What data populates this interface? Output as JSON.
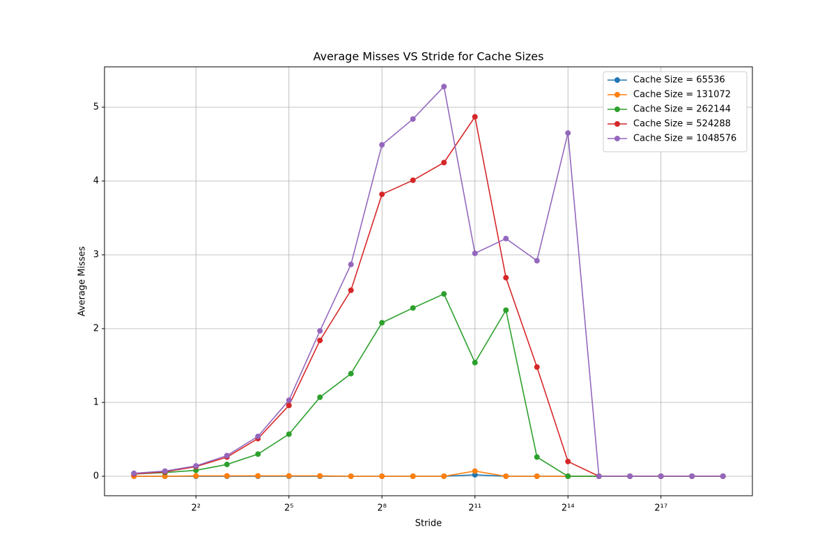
{
  "chart_data": {
    "type": "line",
    "title": "Average Misses VS Stride for Cache Sizes",
    "x_label": "Stride",
    "y_label": "Average Misses",
    "x": [
      1,
      2,
      4,
      8,
      16,
      32,
      64,
      128,
      256,
      512,
      1024,
      2048,
      4096,
      8192,
      16384,
      32768,
      65536,
      131072,
      262144,
      524288
    ],
    "xscale": "log2",
    "xlim": [
      0.5176,
      1012911
    ],
    "xticks": [
      {
        "value": 4,
        "label": "2²"
      },
      {
        "value": 32,
        "label": "2⁵"
      },
      {
        "value": 256,
        "label": "2⁸"
      },
      {
        "value": 2048,
        "label": "2¹¹"
      },
      {
        "value": 16384,
        "label": "2¹⁴"
      },
      {
        "value": 131072,
        "label": "2¹⁷"
      }
    ],
    "ylim": [
      -0.264,
      5.547
    ],
    "yticks": [
      0,
      1,
      2,
      3,
      4,
      5
    ],
    "grid": true,
    "legend": "upper right",
    "series": [
      {
        "name": "Cache Size = 65536",
        "color": "#1f77b4",
        "values": [
          0,
          0,
          0,
          0,
          0,
          0,
          0,
          0,
          0,
          0,
          0,
          0.02,
          0,
          0,
          0,
          0,
          0,
          0,
          0,
          0
        ]
      },
      {
        "name": "Cache Size = 131072",
        "color": "#ff7f0e",
        "values": [
          0,
          0,
          0.005,
          0.005,
          0.005,
          0.005,
          0.005,
          0,
          0,
          0,
          0,
          0.07,
          0,
          0,
          0,
          0,
          0,
          0,
          0,
          0
        ]
      },
      {
        "name": "Cache Size = 262144",
        "color": "#2ca02c",
        "values": [
          0.03,
          0.05,
          0.08,
          0.16,
          0.3,
          0.57,
          1.07,
          1.39,
          2.08,
          2.28,
          2.47,
          1.54,
          2.25,
          0.26,
          0,
          0,
          0,
          0,
          0,
          0
        ]
      },
      {
        "name": "Cache Size = 524288",
        "color": "#d62728",
        "values": [
          0.03,
          0.06,
          0.13,
          0.26,
          0.51,
          0.96,
          1.84,
          2.52,
          3.82,
          4.01,
          4.25,
          4.87,
          2.69,
          1.48,
          0.2,
          0,
          0,
          0,
          0,
          0
        ]
      },
      {
        "name": "Cache Size = 1048576",
        "color": "#9467bd",
        "values": [
          0.04,
          0.07,
          0.14,
          0.28,
          0.54,
          1.03,
          1.97,
          2.87,
          4.49,
          4.84,
          5.28,
          3.02,
          3.22,
          2.92,
          4.65,
          0,
          0,
          0,
          0,
          0
        ]
      }
    ]
  }
}
